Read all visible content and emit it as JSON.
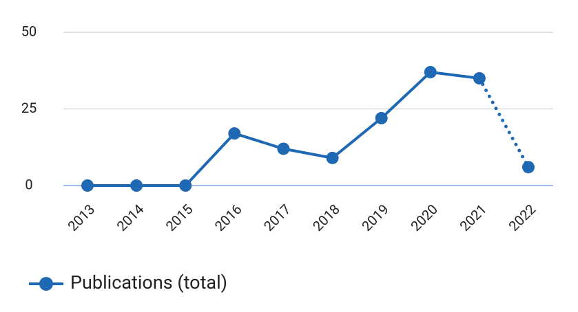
{
  "chart_data": {
    "type": "line",
    "categories": [
      "2013",
      "2014",
      "2015",
      "2016",
      "2017",
      "2018",
      "2019",
      "2020",
      "2021",
      "2022"
    ],
    "series": [
      {
        "name": "Publications (total)",
        "color": "#1f69b4",
        "values": [
          0,
          0,
          0,
          17,
          12,
          9,
          22,
          37,
          35,
          6
        ]
      }
    ],
    "dotted_segments": [
      8
    ],
    "ylim": [
      0,
      50
    ],
    "yticks": [
      0,
      25,
      50
    ],
    "grid": true,
    "legend": "bottom-left"
  }
}
